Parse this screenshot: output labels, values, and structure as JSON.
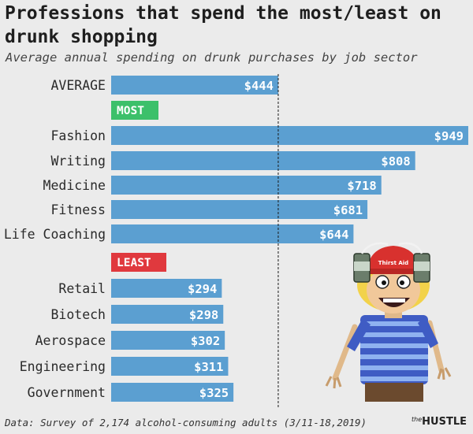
{
  "header": {
    "title": "Professions that spend the most/least on drunk shopping",
    "subtitle": "Average annual spending on drunk purchases by job sector"
  },
  "footer": {
    "source": "Data: Survey of 2,174 alcohol-consuming adults (3/11-18,2019)",
    "brand_prefix": "the",
    "brand_name": "HUSTLE"
  },
  "colors": {
    "bar": "#5b9fd1",
    "most_badge": "#3cc06a",
    "least_badge": "#e0393e",
    "background": "#ebebeb"
  },
  "illustration": {
    "name": "drunk-shopper-character-with-beer-helmet",
    "helmet_text": "Thirst Aid"
  },
  "chart_data": {
    "type": "bar",
    "orientation": "horizontal",
    "xlim": [
      0,
      949
    ],
    "reference_line": 444,
    "average": {
      "label": "AVERAGE",
      "value": 444,
      "value_label": "$444"
    },
    "groups": [
      {
        "name": "MOST",
        "categories": [
          "Fashion",
          "Writing",
          "Medicine",
          "Fitness",
          "Life Coaching"
        ],
        "values": [
          949,
          808,
          718,
          681,
          644
        ],
        "value_labels": [
          "$949",
          "$808",
          "$718",
          "$681",
          "$644"
        ]
      },
      {
        "name": "LEAST",
        "categories": [
          "Retail",
          "Biotech",
          "Aerospace",
          "Engineering",
          "Government"
        ],
        "values": [
          294,
          298,
          302,
          311,
          325
        ],
        "value_labels": [
          "$294",
          "$298",
          "$302",
          "$311",
          "$325"
        ]
      }
    ]
  }
}
